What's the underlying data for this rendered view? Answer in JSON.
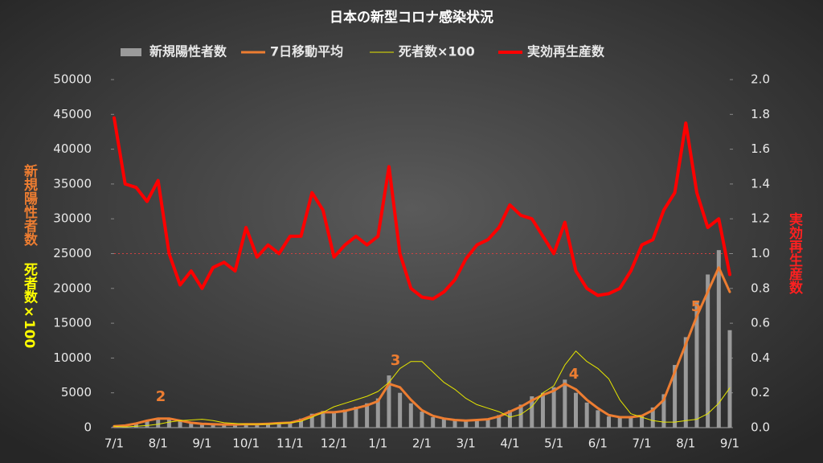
{
  "chart_data": {
    "type": "combo",
    "title": "日本の新型コロナ感染状況",
    "ylabel": "新規陽性者数",
    "ylabel2": "死者数×100",
    "y2label": "実効再生産数",
    "categories": [
      "7/1",
      null,
      null,
      null,
      "8/1",
      null,
      null,
      null,
      "9/1",
      null,
      null,
      null,
      "10/1",
      null,
      null,
      null,
      "11/1",
      null,
      null,
      null,
      "12/1",
      null,
      null,
      null,
      "1/1",
      null,
      null,
      null,
      "2/1",
      null,
      null,
      null,
      "3/1",
      null,
      null,
      null,
      "4/1",
      null,
      null,
      null,
      "5/1",
      null,
      null,
      null,
      "6/1",
      null,
      null,
      null,
      "7/1",
      null,
      null,
      null,
      "8/1",
      null,
      null,
      null,
      "9/1"
    ],
    "series": [
      {
        "name": "新規陽性者数",
        "type": "bar",
        "color": "#9a9a9a",
        "values": [
          150,
          350,
          650,
          1100,
          1400,
          1200,
          900,
          650,
          500,
          550,
          400,
          500,
          550,
          450,
          600,
          700,
          750,
          1300,
          2000,
          2400,
          2100,
          2600,
          3000,
          3500,
          4200,
          7500,
          5000,
          3500,
          2300,
          1500,
          1200,
          1000,
          900,
          1200,
          1300,
          1800,
          2500,
          3300,
          4500,
          5000,
          5800,
          6900,
          5000,
          3600,
          2500,
          1600,
          1400,
          1500,
          1800,
          2900,
          4800,
          9000,
          13000,
          18000,
          22000,
          25500,
          14000
        ]
      },
      {
        "name": "7日移動平均",
        "type": "line",
        "color": "#ed7d31",
        "width": 3,
        "values": [
          200,
          300,
          600,
          1000,
          1300,
          1300,
          1000,
          700,
          550,
          500,
          450,
          450,
          500,
          500,
          550,
          650,
          700,
          1100,
          1700,
          2200,
          2200,
          2400,
          2800,
          3200,
          3800,
          6300,
          5800,
          4000,
          2500,
          1700,
          1300,
          1100,
          1000,
          1100,
          1200,
          1600,
          2300,
          3000,
          3900,
          4700,
          5300,
          6300,
          5500,
          4000,
          2800,
          1800,
          1500,
          1500,
          1700,
          2500,
          4000,
          8000,
          12000,
          16000,
          19500,
          23000,
          19500
        ]
      },
      {
        "name": "死者数×100",
        "type": "line",
        "color": "#e6e600",
        "width": 1,
        "values": [
          200,
          100,
          200,
          300,
          500,
          800,
          1000,
          1100,
          1200,
          1000,
          700,
          600,
          500,
          500,
          500,
          600,
          700,
          900,
          1500,
          2200,
          3000,
          3500,
          4000,
          4500,
          5200,
          6500,
          8500,
          9500,
          9500,
          8000,
          6500,
          5500,
          4200,
          3300,
          2800,
          2300,
          1500,
          1900,
          3000,
          5000,
          6000,
          9000,
          11000,
          9500,
          8500,
          7000,
          4000,
          2000,
          1500,
          1000,
          800,
          800,
          1000,
          1200,
          2000,
          3500,
          5700
        ]
      },
      {
        "name": "実効再生産数",
        "type": "line",
        "color": "#ff0000",
        "width": 4,
        "axis": "y2",
        "values": [
          1.78,
          1.4,
          1.38,
          1.3,
          1.42,
          1.0,
          0.82,
          0.9,
          0.8,
          0.92,
          0.95,
          0.9,
          1.15,
          0.98,
          1.05,
          1.0,
          1.1,
          1.1,
          1.35,
          1.25,
          0.98,
          1.05,
          1.1,
          1.05,
          1.1,
          1.5,
          1.0,
          0.8,
          0.75,
          0.74,
          0.78,
          0.85,
          0.97,
          1.05,
          1.08,
          1.15,
          1.28,
          1.22,
          1.2,
          1.1,
          1.0,
          1.18,
          0.9,
          0.8,
          0.76,
          0.77,
          0.8,
          0.9,
          1.05,
          1.08,
          1.25,
          1.35,
          1.75,
          1.35,
          1.15,
          1.2,
          0.88
        ]
      }
    ],
    "ylim": [
      0,
      50000
    ],
    "yticks": [
      0,
      5000,
      10000,
      15000,
      20000,
      25000,
      30000,
      35000,
      40000,
      45000,
      50000
    ],
    "y2lim": [
      0,
      2
    ],
    "y2ticks": [
      {
        "value": 0,
        "label": "0.0"
      },
      0.2,
      0.4,
      0.6,
      0.8,
      {
        "value": 1,
        "label": "1.0"
      },
      1.2,
      1.4,
      1.6,
      1.8,
      {
        "value": 2,
        "label": "2.0"
      }
    ],
    "y2_refline": 1,
    "annotations": [
      "2",
      "3",
      "4",
      "5"
    ],
    "grid": false,
    "legend": "top"
  }
}
